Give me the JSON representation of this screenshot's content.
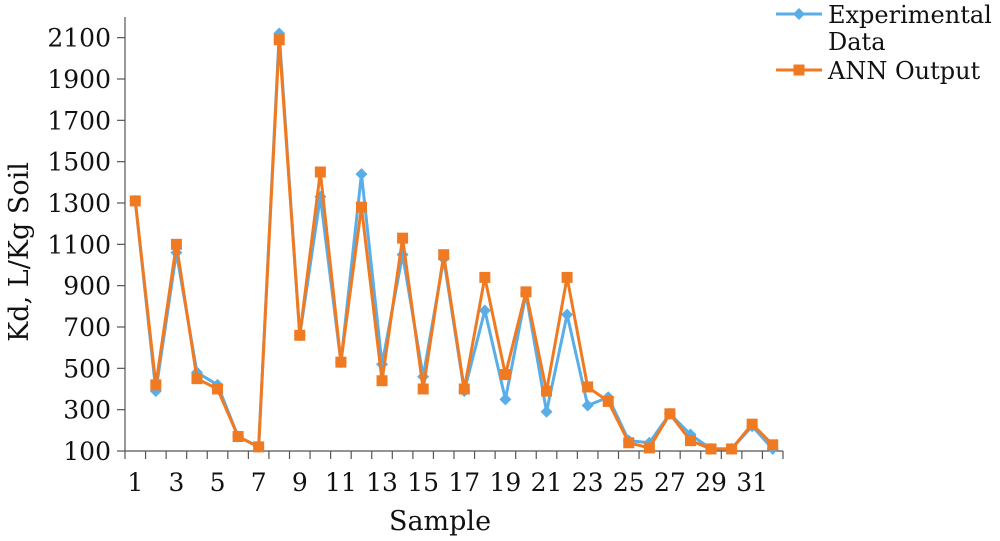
{
  "chart_data": {
    "type": "line",
    "title": "",
    "xlabel": "Sample",
    "ylabel": "Kd, L/Kg Soil",
    "ylim": [
      100,
      2200
    ],
    "y_ticks": [
      100,
      300,
      500,
      700,
      900,
      1100,
      1300,
      1500,
      1700,
      1900,
      2100
    ],
    "x_tick_labels": [
      "1",
      "3",
      "5",
      "7",
      "9",
      "11",
      "13",
      "15",
      "17",
      "19",
      "21",
      "23",
      "25",
      "27",
      "29",
      "31"
    ],
    "x": [
      1,
      2,
      3,
      4,
      5,
      6,
      7,
      8,
      9,
      10,
      11,
      12,
      13,
      14,
      15,
      16,
      17,
      18,
      19,
      20,
      21,
      22,
      23,
      24,
      25,
      26,
      27,
      28,
      29,
      30,
      31,
      32
    ],
    "grid": false,
    "legend_position": "top-right",
    "series": [
      {
        "name": "Experimental Data",
        "name_lines": [
          "Experimental",
          "Data"
        ],
        "color": "#5aaee8",
        "marker": "diamond",
        "values": [
          1310,
          390,
          1060,
          480,
          420,
          170,
          120,
          2120,
          660,
          1330,
          530,
          1440,
          520,
          1050,
          460,
          1030,
          390,
          780,
          350,
          860,
          290,
          760,
          320,
          360,
          150,
          140,
          280,
          180,
          110,
          110,
          220,
          110
        ]
      },
      {
        "name": "ANN Output",
        "name_lines": [
          "ANN Output"
        ],
        "color": "#f07a22",
        "marker": "square",
        "values": [
          1310,
          420,
          1100,
          450,
          400,
          170,
          120,
          2090,
          660,
          1450,
          530,
          1280,
          440,
          1130,
          400,
          1050,
          400,
          940,
          470,
          870,
          390,
          940,
          410,
          340,
          140,
          115,
          280,
          150,
          110,
          110,
          230,
          130
        ]
      }
    ]
  }
}
